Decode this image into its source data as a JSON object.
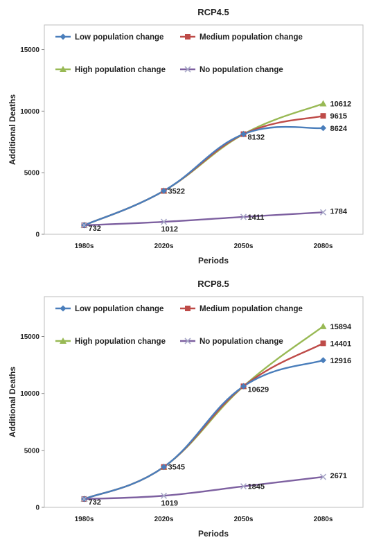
{
  "chart_data": [
    {
      "type": "line",
      "title": "RCP4.5",
      "xlabel": "Periods",
      "ylabel": "Additional Deaths",
      "categories": [
        "1980s",
        "2020s",
        "2050s",
        "2080s"
      ],
      "ylim": [
        0,
        17000
      ],
      "yticks": [
        0,
        5000,
        10000,
        15000
      ],
      "grid": false,
      "legend": "top-left",
      "series": [
        {
          "name": "Low population change",
          "values": [
            732,
            3522,
            8132,
            8624
          ],
          "color": "#4a7ebb",
          "marker": "diamond"
        },
        {
          "name": "Medium population change",
          "values": [
            732,
            3522,
            8132,
            9615
          ],
          "color": "#be4b48",
          "marker": "square"
        },
        {
          "name": "High population change",
          "values": [
            732,
            3522,
            8132,
            10612
          ],
          "color": "#98b954",
          "marker": "triangle"
        },
        {
          "name": "No population change",
          "values": [
            732,
            1012,
            1411,
            1784
          ],
          "color": "#7d60a0",
          "marker": "x"
        }
      ],
      "labels": [
        {
          "series": 0,
          "index": 0,
          "text": "732"
        },
        {
          "series": 0,
          "index": 1,
          "text": "3522"
        },
        {
          "series": 0,
          "index": 2,
          "text": "8132"
        },
        {
          "series": 0,
          "index": 3,
          "text": "8624"
        },
        {
          "series": 1,
          "index": 3,
          "text": "9615"
        },
        {
          "series": 2,
          "index": 3,
          "text": "10612"
        },
        {
          "series": 3,
          "index": 1,
          "text": "1012"
        },
        {
          "series": 3,
          "index": 2,
          "text": "1411"
        },
        {
          "series": 3,
          "index": 3,
          "text": "1784"
        }
      ]
    },
    {
      "type": "line",
      "title": "RCP8.5",
      "xlabel": "Periods",
      "ylabel": "Additional Deaths",
      "categories": [
        "1980s",
        "2020s",
        "2050s",
        "2080s"
      ],
      "ylim": [
        0,
        18500
      ],
      "yticks": [
        0,
        5000,
        10000,
        15000
      ],
      "grid": false,
      "legend": "top-left",
      "series": [
        {
          "name": "Low population change",
          "values": [
            732,
            3545,
            10629,
            12916
          ],
          "color": "#4a7ebb",
          "marker": "diamond"
        },
        {
          "name": "Medium population change",
          "values": [
            732,
            3545,
            10629,
            14401
          ],
          "color": "#be4b48",
          "marker": "square"
        },
        {
          "name": "High population change",
          "values": [
            732,
            3545,
            10629,
            15894
          ],
          "color": "#98b954",
          "marker": "triangle"
        },
        {
          "name": "No population change",
          "values": [
            732,
            1019,
            1845,
            2671
          ],
          "color": "#7d60a0",
          "marker": "x"
        }
      ],
      "labels": [
        {
          "series": 0,
          "index": 0,
          "text": "732"
        },
        {
          "series": 0,
          "index": 1,
          "text": "3545"
        },
        {
          "series": 0,
          "index": 2,
          "text": "10629"
        },
        {
          "series": 0,
          "index": 3,
          "text": "12916"
        },
        {
          "series": 1,
          "index": 3,
          "text": "14401"
        },
        {
          "series": 2,
          "index": 3,
          "text": "15894"
        },
        {
          "series": 3,
          "index": 1,
          "text": "1019"
        },
        {
          "series": 3,
          "index": 2,
          "text": "1845"
        },
        {
          "series": 3,
          "index": 3,
          "text": "2671"
        }
      ]
    }
  ]
}
